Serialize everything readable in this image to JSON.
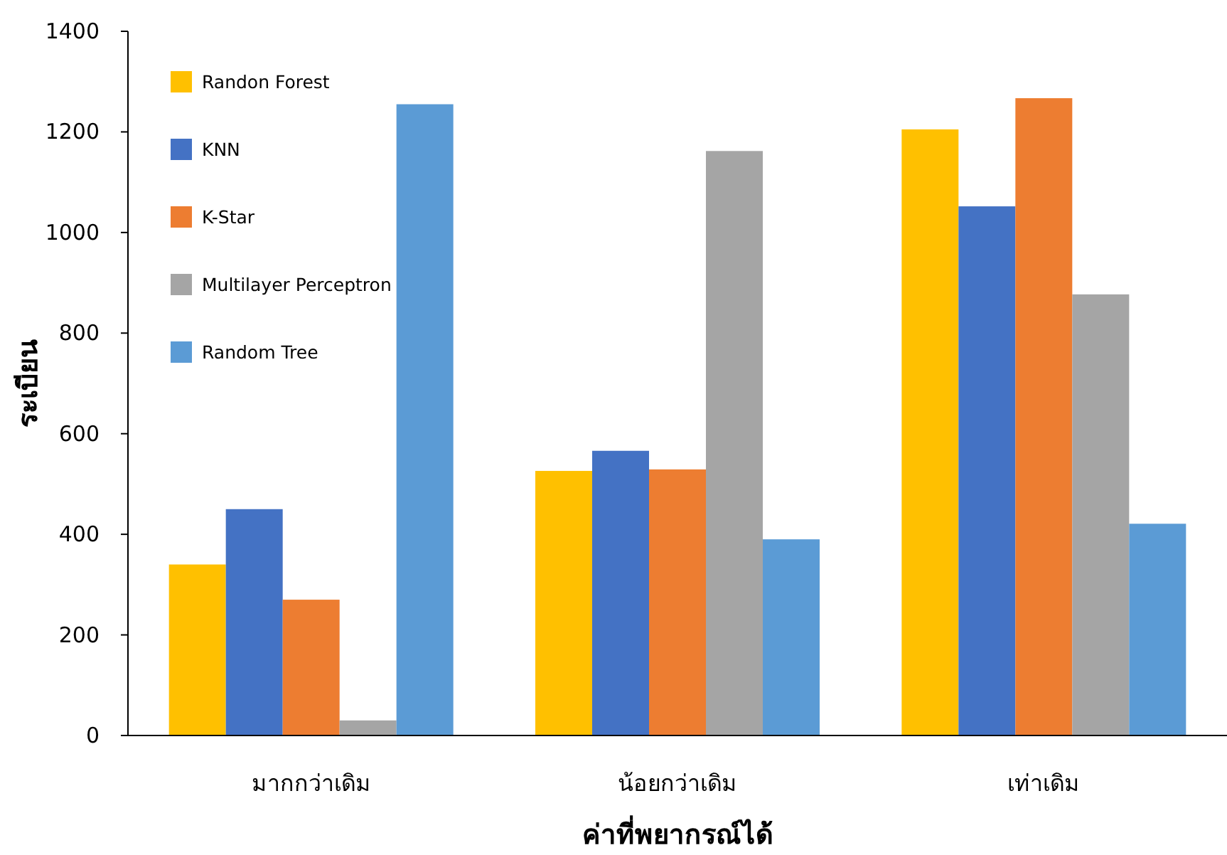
{
  "chart_data": {
    "type": "bar",
    "xlabel": "ค่าที่พยากรณ์ได้",
    "ylabel": "ระเบียน",
    "categories": [
      "มากกว่าเดิม",
      "น้อยกว่าเดิม",
      "เท่าเดิม"
    ],
    "series": [
      {
        "name": "Randon Forest",
        "color": "#ffc000",
        "values": [
          340,
          526,
          1205
        ]
      },
      {
        "name": "KNN",
        "color": "#4472c4",
        "values": [
          450,
          566,
          1052
        ]
      },
      {
        "name": "K-Star",
        "color": "#ed7d31",
        "values": [
          270,
          529,
          1267
        ]
      },
      {
        "name": "Multilayer Perceptron",
        "color": "#a5a5a5",
        "values": [
          30,
          1162,
          877
        ]
      },
      {
        "name": "Random Tree",
        "color": "#5b9bd5",
        "values": [
          1255,
          390,
          421
        ]
      }
    ],
    "ylim": [
      0,
      1400
    ],
    "yticks": [
      0,
      200,
      400,
      600,
      800,
      1000,
      1200,
      1400
    ],
    "legend": "top left"
  }
}
